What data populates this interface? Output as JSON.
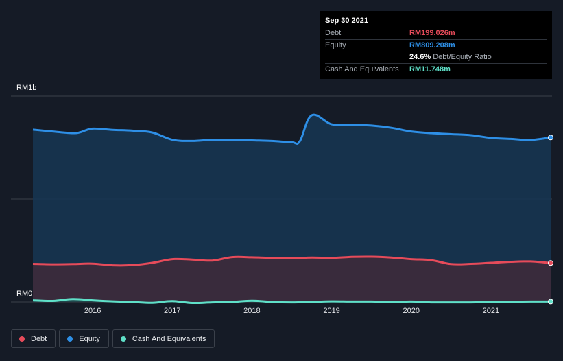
{
  "colors": {
    "background": "#151b26",
    "debt": "#e64b5a",
    "equity": "#2e8fe6",
    "cash": "#5fe0c8",
    "equity_fill": "#163654",
    "debt_fill": "#3f2a3a",
    "cash_fill": "#1f4a4e"
  },
  "tooltip": {
    "date": "Sep 30 2021",
    "rows": [
      {
        "label": "Debt",
        "value": "RM199.026m",
        "color": "#e64b5a",
        "desc": ""
      },
      {
        "label": "Equity",
        "value": "RM809.208m",
        "color": "#2e8fe6",
        "desc": ""
      },
      {
        "label": "",
        "value": "24.6%",
        "color": "#ffffff",
        "desc": "Debt/Equity Ratio"
      },
      {
        "label": "Cash And Equivalents",
        "value": "RM11.748m",
        "color": "#5fe0c8",
        "desc": ""
      }
    ]
  },
  "legend": [
    {
      "label": "Debt",
      "color": "#e64b5a"
    },
    {
      "label": "Equity",
      "color": "#2e8fe6"
    },
    {
      "label": "Cash And Equivalents",
      "color": "#5fe0c8"
    }
  ],
  "chart_data": {
    "type": "area",
    "title": "",
    "xlabel": "",
    "ylabel": "",
    "y_top_label": "RM1b",
    "y_bottom_label": "RM0",
    "ylim": [
      0,
      1000
    ],
    "xlim": [
      2015.25,
      2021.75
    ],
    "x_ticks": [
      {
        "x": 2016,
        "label": "2016"
      },
      {
        "x": 2017,
        "label": "2017"
      },
      {
        "x": 2018,
        "label": "2018"
      },
      {
        "x": 2019,
        "label": "2019"
      },
      {
        "x": 2020,
        "label": "2020"
      },
      {
        "x": 2021,
        "label": "2021"
      }
    ],
    "grid": true,
    "legend_position": "bottom-left",
    "series": [
      {
        "name": "Equity",
        "color": "#2e8fe6",
        "x": [
          2015.25,
          2015.5,
          2015.75,
          2015.85,
          2016.0,
          2016.25,
          2016.5,
          2016.75,
          2017.0,
          2017.25,
          2017.5,
          2017.75,
          2018.0,
          2018.25,
          2018.5,
          2018.6,
          2018.75,
          2019.0,
          2019.25,
          2019.5,
          2019.75,
          2020.0,
          2020.25,
          2020.5,
          2020.75,
          2021.0,
          2021.25,
          2021.5,
          2021.75
        ],
        "y": [
          847,
          838,
          830,
          835,
          852,
          846,
          842,
          833,
          798,
          792,
          798,
          798,
          795,
          792,
          786,
          790,
          917,
          873,
          871,
          867,
          856,
          838,
          830,
          825,
          820,
          807,
          802,
          797,
          809
        ]
      },
      {
        "name": "Debt",
        "color": "#e64b5a",
        "x": [
          2015.25,
          2015.5,
          2015.75,
          2016.0,
          2016.25,
          2016.5,
          2016.75,
          2017.0,
          2017.25,
          2017.5,
          2017.75,
          2018.0,
          2018.25,
          2018.5,
          2018.75,
          2019.0,
          2019.25,
          2019.5,
          2019.75,
          2020.0,
          2020.25,
          2020.5,
          2020.75,
          2021.0,
          2021.25,
          2021.5,
          2021.75
        ],
        "y": [
          195,
          193,
          194,
          196,
          188,
          189,
          200,
          218,
          216,
          211,
          228,
          227,
          224,
          222,
          226,
          224,
          229,
          230,
          226,
          218,
          213,
          194,
          195,
          200,
          205,
          207,
          199
        ]
      },
      {
        "name": "Cash And Equivalents",
        "color": "#5fe0c8",
        "x": [
          2015.25,
          2015.5,
          2015.75,
          2016.0,
          2016.25,
          2016.5,
          2016.75,
          2017.0,
          2017.25,
          2017.5,
          2017.75,
          2018.0,
          2018.25,
          2018.5,
          2018.75,
          2019.0,
          2019.25,
          2019.5,
          2019.75,
          2020.0,
          2020.25,
          2020.5,
          2020.75,
          2021.0,
          2021.25,
          2021.5,
          2021.75
        ],
        "y": [
          18,
          15,
          24,
          18,
          13,
          10,
          6,
          14,
          5,
          8,
          10,
          16,
          10,
          8,
          10,
          13,
          12,
          12,
          10,
          12,
          8,
          8,
          8,
          10,
          11,
          12,
          12
        ]
      }
    ]
  }
}
